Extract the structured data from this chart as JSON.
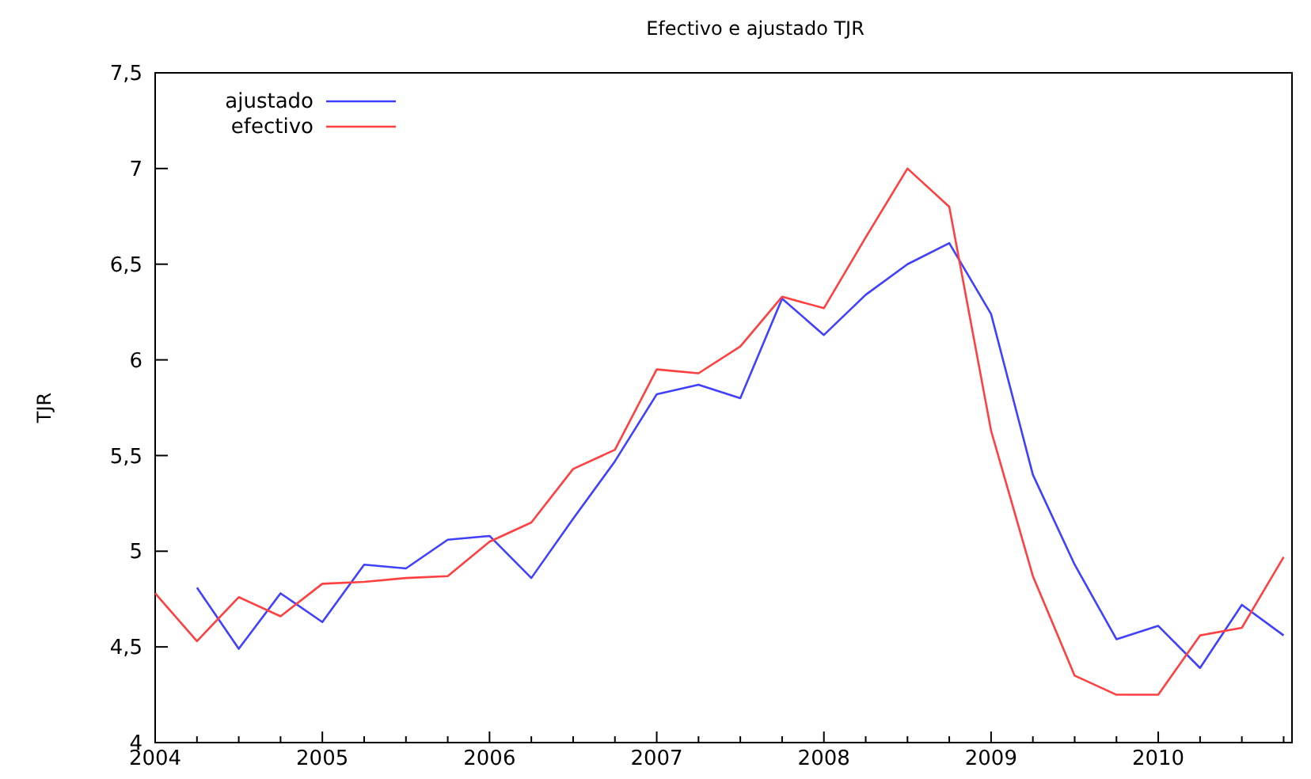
{
  "chart_data": {
    "type": "line",
    "title": "Efectivo e ajustado TJR",
    "ylabel": "TJR",
    "x": [
      2004,
      2004.25,
      2004.5,
      2004.75,
      2005,
      2005.25,
      2005.5,
      2005.75,
      2006,
      2006.25,
      2006.5,
      2006.75,
      2007,
      2007.25,
      2007.5,
      2007.75,
      2008,
      2008.25,
      2008.5,
      2008.75,
      2009,
      2009.25,
      2009.5,
      2009.75,
      2010,
      2010.25,
      2010.5,
      2010.75
    ],
    "series": [
      {
        "name": "ajustado",
        "color": "#4040ff",
        "values": [
          null,
          4.81,
          4.49,
          4.78,
          4.63,
          4.93,
          4.91,
          5.06,
          5.08,
          4.86,
          5.17,
          5.47,
          5.82,
          5.87,
          5.8,
          6.32,
          6.13,
          6.34,
          6.5,
          6.61,
          6.24,
          5.4,
          4.93,
          4.54,
          4.61,
          4.39,
          4.72,
          4.56
        ]
      },
      {
        "name": "efectivo",
        "color": "#ff4040",
        "values": [
          4.78,
          4.53,
          4.76,
          4.66,
          4.83,
          4.84,
          4.86,
          4.87,
          5.05,
          5.15,
          5.43,
          5.53,
          5.95,
          5.93,
          6.07,
          6.33,
          6.27,
          6.64,
          7.0,
          6.8,
          5.63,
          4.87,
          4.35,
          4.25,
          4.25,
          4.56,
          4.6,
          4.97
        ]
      }
    ],
    "xlim": [
      2004,
      2010.8
    ],
    "xticks": [
      2004,
      {
        "value": 2004.25,
        "label": null
      },
      {
        "value": 2004.5,
        "label": null
      },
      {
        "value": 2004.75,
        "label": null
      },
      2005,
      {
        "value": 2005.25,
        "label": null
      },
      {
        "value": 2005.5,
        "label": null
      },
      {
        "value": 2005.75,
        "label": null
      },
      2006,
      {
        "value": 2006.25,
        "label": null
      },
      {
        "value": 2006.5,
        "label": null
      },
      {
        "value": 2006.75,
        "label": null
      },
      2007,
      {
        "value": 2007.25,
        "label": null
      },
      {
        "value": 2007.5,
        "label": null
      },
      {
        "value": 2007.75,
        "label": null
      },
      2008,
      {
        "value": 2008.25,
        "label": null
      },
      {
        "value": 2008.5,
        "label": null
      },
      {
        "value": 2008.75,
        "label": null
      },
      2009,
      {
        "value": 2009.25,
        "label": null
      },
      {
        "value": 2009.5,
        "label": null
      },
      {
        "value": 2009.75,
        "label": null
      },
      2010,
      {
        "value": 2010.25,
        "label": null
      },
      {
        "value": 2010.5,
        "label": null
      },
      {
        "value": 2010.75,
        "label": null
      }
    ],
    "ylim": [
      4,
      7.5
    ],
    "yticks": [
      4,
      {
        "value": 4.5,
        "label": "4,5"
      },
      5,
      {
        "value": 5.5,
        "label": "5,5"
      },
      6,
      {
        "value": 6.5,
        "label": "6,5"
      },
      7,
      {
        "value": 7.5,
        "label": "7,5"
      }
    ],
    "legend": "top left",
    "grid": false,
    "marker": "none",
    "line_style": "solid"
  }
}
